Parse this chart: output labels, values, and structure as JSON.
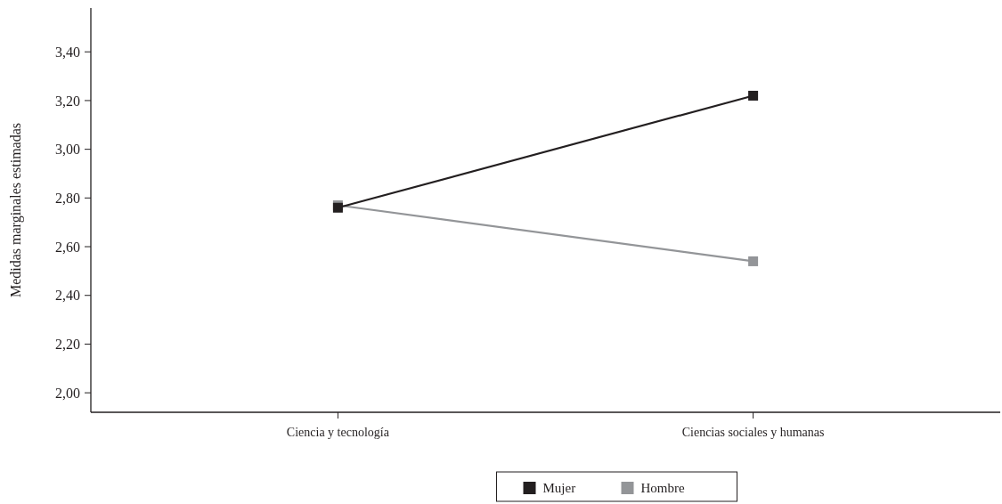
{
  "chart_data": {
    "type": "line",
    "ylabel": "Medidas marginales estimadas",
    "categories": [
      "Ciencia y tecnología",
      "Ciencias sociales y humanas"
    ],
    "series": [
      {
        "name": "Mujer",
        "color": "#231f20",
        "values": [
          2.76,
          3.22
        ]
      },
      {
        "name": "Hombre",
        "color": "#939598",
        "values": [
          2.77,
          2.54
        ]
      }
    ],
    "ylim": [
      1.92,
      3.58
    ],
    "yticks": [
      {
        "value": 2,
        "label": "2,00"
      },
      {
        "value": 2.2,
        "label": "2,20"
      },
      {
        "value": 2.4,
        "label": "2,40"
      },
      {
        "value": 2.6,
        "label": "2,60"
      },
      {
        "value": 2.8,
        "label": "2,80"
      },
      {
        "value": 3,
        "label": "3,00"
      },
      {
        "value": 3.2,
        "label": "3,20"
      },
      {
        "value": 3.4,
        "label": "3,40"
      }
    ],
    "grid": false,
    "legend": "bottom",
    "marker": "square",
    "line_style": "solid"
  }
}
